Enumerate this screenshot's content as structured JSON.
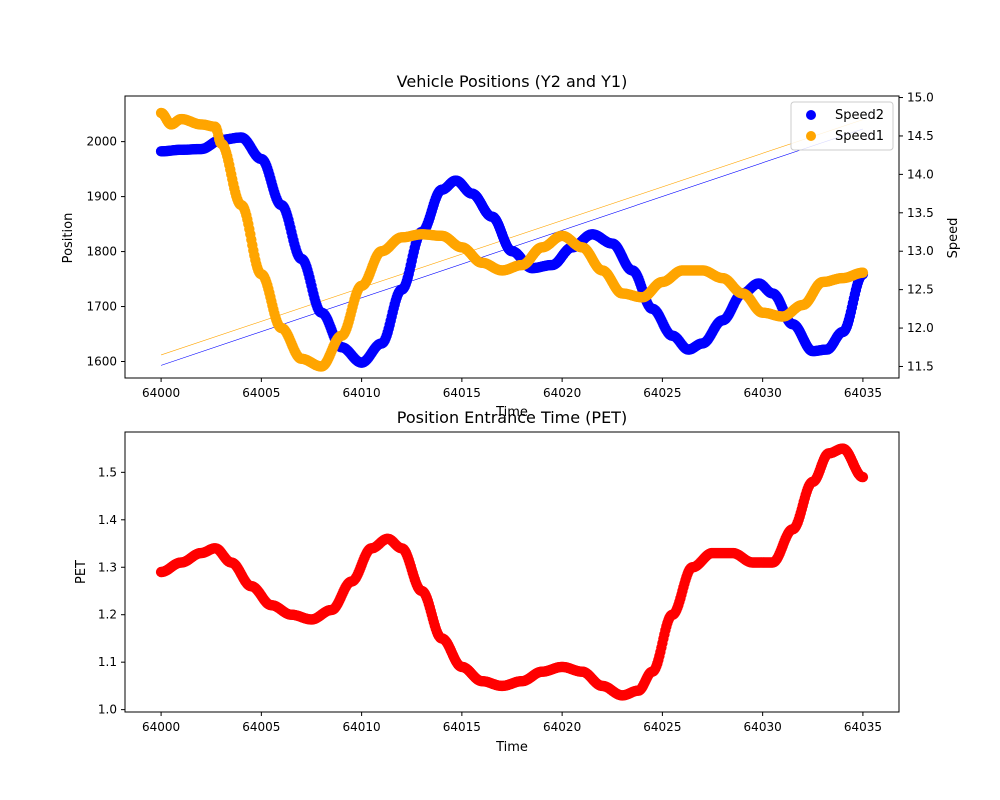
{
  "chart_data": [
    {
      "type": "scatter",
      "title": "Vehicle Positions (Y2 and Y1)",
      "xlabel": "Time",
      "ylabel": "Position",
      "y2label": "Speed",
      "xlim": [
        63998.2,
        64036.8
      ],
      "ylim": [
        1570,
        2083
      ],
      "y2lim": [
        11.35,
        15.02
      ],
      "xticks": [
        64000,
        64005,
        64010,
        64015,
        64020,
        64025,
        64030,
        64035
      ],
      "yticks": [
        1600,
        1700,
        1800,
        1900,
        2000
      ],
      "y2ticks": [
        11.5,
        12.0,
        12.5,
        13.0,
        13.5,
        14.0,
        14.5,
        15.0
      ],
      "legend_position": "top-right",
      "series": [
        {
          "name": "Speed2",
          "axis": "right",
          "color": "#0000ff",
          "kind": "scatter",
          "points": [
            [
              64000,
              14.3
            ],
            [
              64001,
              14.32
            ],
            [
              64002,
              14.33
            ],
            [
              64003,
              14.45
            ],
            [
              64004,
              14.48
            ],
            [
              64005,
              14.2
            ],
            [
              64006,
              13.6
            ],
            [
              64007,
              12.9
            ],
            [
              64008,
              12.2
            ],
            [
              64009,
              11.75
            ],
            [
              64010,
              11.55
            ],
            [
              64011,
              11.8
            ],
            [
              64012,
              12.5
            ],
            [
              64013,
              13.25
            ],
            [
              64014,
              13.8
            ],
            [
              64014.7,
              13.92
            ],
            [
              64015.5,
              13.75
            ],
            [
              64016.5,
              13.45
            ],
            [
              64017.5,
              13.0
            ],
            [
              64018.5,
              12.78
            ],
            [
              64019.5,
              12.82
            ],
            [
              64020.5,
              13.05
            ],
            [
              64021.5,
              13.22
            ],
            [
              64022.5,
              13.1
            ],
            [
              64023.5,
              12.75
            ],
            [
              64024.5,
              12.25
            ],
            [
              64025.5,
              11.9
            ],
            [
              64026.3,
              11.72
            ],
            [
              64027,
              11.8
            ],
            [
              64028,
              12.1
            ],
            [
              64029,
              12.45
            ],
            [
              64029.8,
              12.58
            ],
            [
              64030.5,
              12.45
            ],
            [
              64031.5,
              12.05
            ],
            [
              64032.5,
              11.7
            ],
            [
              64033.2,
              11.72
            ],
            [
              64034,
              11.95
            ],
            [
              64035,
              12.7
            ]
          ]
        },
        {
          "name": "Speed1",
          "axis": "right",
          "color": "#ffa500",
          "kind": "scatter",
          "points": [
            [
              64000,
              14.8
            ],
            [
              64000.5,
              14.65
            ],
            [
              64001,
              14.72
            ],
            [
              64002,
              14.65
            ],
            [
              64002.7,
              14.62
            ],
            [
              64003,
              14.4
            ],
            [
              64004,
              13.6
            ],
            [
              64005,
              12.7
            ],
            [
              64006,
              12.0
            ],
            [
              64007,
              11.6
            ],
            [
              64008,
              11.5
            ],
            [
              64009,
              11.9
            ],
            [
              64010,
              12.55
            ],
            [
              64011,
              13.0
            ],
            [
              64012,
              13.18
            ],
            [
              64013,
              13.22
            ],
            [
              64014,
              13.2
            ],
            [
              64015,
              13.05
            ],
            [
              64016,
              12.85
            ],
            [
              64017,
              12.75
            ],
            [
              64018,
              12.82
            ],
            [
              64019,
              13.05
            ],
            [
              64020,
              13.2
            ],
            [
              64021,
              13.05
            ],
            [
              64022,
              12.75
            ],
            [
              64023,
              12.45
            ],
            [
              64024,
              12.4
            ],
            [
              64025,
              12.6
            ],
            [
              64026,
              12.75
            ],
            [
              64027,
              12.75
            ],
            [
              64028,
              12.65
            ],
            [
              64029,
              12.45
            ],
            [
              64030,
              12.2
            ],
            [
              64031,
              12.15
            ],
            [
              64032,
              12.3
            ],
            [
              64033,
              12.6
            ],
            [
              64034,
              12.65
            ],
            [
              64035,
              12.72
            ]
          ]
        },
        {
          "name": "Y2",
          "axis": "left",
          "color": "#0000ff",
          "kind": "line",
          "points": [
            [
              64000,
              1593
            ],
            [
              64035,
              2023
            ]
          ]
        },
        {
          "name": "Y1",
          "axis": "left",
          "color": "#ffa500",
          "kind": "line",
          "points": [
            [
              64000,
              1612
            ],
            [
              64035,
              2040
            ]
          ]
        }
      ]
    },
    {
      "type": "scatter",
      "title": "Position Entrance Time (PET)",
      "xlabel": "Time",
      "ylabel": "PET",
      "xlim": [
        63998.2,
        64036.8
      ],
      "ylim": [
        0.995,
        1.585
      ],
      "xticks": [
        64000,
        64005,
        64010,
        64015,
        64020,
        64025,
        64030,
        64035
      ],
      "yticks": [
        1.0,
        1.1,
        1.2,
        1.3,
        1.4,
        1.5
      ],
      "series": [
        {
          "color": "#ff0000",
          "points": [
            [
              64000,
              1.29
            ],
            [
              64001,
              1.31
            ],
            [
              64002,
              1.33
            ],
            [
              64002.7,
              1.34
            ],
            [
              64003.5,
              1.31
            ],
            [
              64004.5,
              1.26
            ],
            [
              64005.5,
              1.22
            ],
            [
              64006.5,
              1.2
            ],
            [
              64007.5,
              1.19
            ],
            [
              64008.5,
              1.21
            ],
            [
              64009.5,
              1.27
            ],
            [
              64010.5,
              1.34
            ],
            [
              64011.3,
              1.36
            ],
            [
              64012,
              1.34
            ],
            [
              64013,
              1.25
            ],
            [
              64014,
              1.15
            ],
            [
              64015,
              1.09
            ],
            [
              64016,
              1.06
            ],
            [
              64017,
              1.05
            ],
            [
              64018,
              1.06
            ],
            [
              64019,
              1.08
            ],
            [
              64020,
              1.09
            ],
            [
              64021,
              1.08
            ],
            [
              64022,
              1.05
            ],
            [
              64023,
              1.03
            ],
            [
              64023.8,
              1.04
            ],
            [
              64024.5,
              1.08
            ],
            [
              64025.5,
              1.2
            ],
            [
              64026.5,
              1.3
            ],
            [
              64027.5,
              1.33
            ],
            [
              64028.5,
              1.33
            ],
            [
              64029.5,
              1.31
            ],
            [
              64030.5,
              1.31
            ],
            [
              64031.5,
              1.38
            ],
            [
              64032.5,
              1.48
            ],
            [
              64033.3,
              1.54
            ],
            [
              64034,
              1.55
            ],
            [
              64035,
              1.49
            ]
          ]
        }
      ]
    }
  ]
}
